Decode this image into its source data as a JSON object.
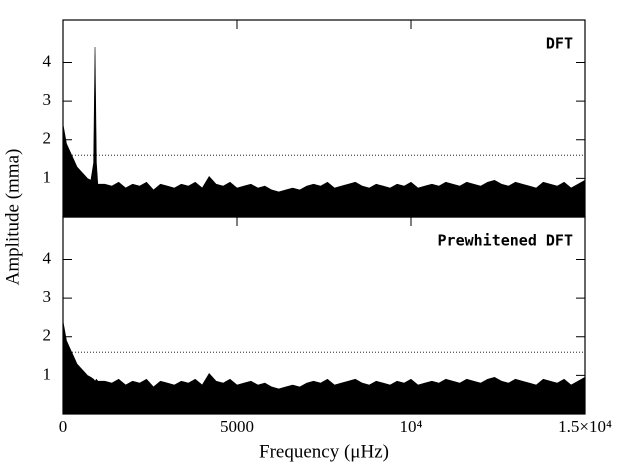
{
  "chart_data": [
    {
      "type": "area",
      "label": "DFT",
      "y_label": "Amplitude (mma)",
      "color": "#000000",
      "threshold": 1.6,
      "x": [
        0,
        100,
        200,
        300,
        400,
        500,
        600,
        700,
        800,
        880,
        920,
        960,
        1000,
        1200,
        1400,
        1600,
        1800,
        2000,
        2200,
        2400,
        2600,
        2800,
        3000,
        3200,
        3400,
        3600,
        3800,
        4000,
        4200,
        4400,
        4600,
        4800,
        5000,
        5200,
        5400,
        5600,
        5800,
        6000,
        6200,
        6400,
        6600,
        6800,
        7000,
        7200,
        7400,
        7600,
        7800,
        8000,
        8200,
        8400,
        8600,
        8800,
        9000,
        9200,
        9400,
        9600,
        9800,
        10000,
        10200,
        10400,
        10600,
        10800,
        11000,
        11200,
        11400,
        11600,
        11800,
        12000,
        12200,
        12400,
        12600,
        12800,
        13000,
        13200,
        13400,
        13600,
        13800,
        14000,
        14200,
        14400,
        14600,
        14800,
        15000
      ],
      "values": [
        2.4,
        1.9,
        1.7,
        1.5,
        1.3,
        1.2,
        1.1,
        1.0,
        0.95,
        1.4,
        4.4,
        1.4,
        0.85,
        0.85,
        0.8,
        0.9,
        0.75,
        0.85,
        0.8,
        0.9,
        0.7,
        0.85,
        0.8,
        0.75,
        0.85,
        0.8,
        0.9,
        0.75,
        1.05,
        0.85,
        0.8,
        0.9,
        0.75,
        0.8,
        0.85,
        0.75,
        0.8,
        0.7,
        0.65,
        0.7,
        0.75,
        0.7,
        0.8,
        0.85,
        0.8,
        0.9,
        0.75,
        0.8,
        0.85,
        0.9,
        0.8,
        0.75,
        0.85,
        0.8,
        0.75,
        0.85,
        0.8,
        0.9,
        0.75,
        0.8,
        0.85,
        0.8,
        0.9,
        0.85,
        0.8,
        0.9,
        0.85,
        0.8,
        0.9,
        0.95,
        0.85,
        0.8,
        0.9,
        0.85,
        0.8,
        0.75,
        0.9,
        0.85,
        0.8,
        0.9,
        0.75,
        0.85,
        0.95
      ],
      "xlim": [
        0,
        15000
      ],
      "ylim": [
        0,
        5.1
      ],
      "yticks": [
        1,
        2,
        3,
        4
      ],
      "xticks": [
        0,
        5000,
        {
          "value": 10000,
          "label": "10⁴"
        },
        {
          "value": 15000,
          "label": "1.5×10⁴"
        }
      ]
    },
    {
      "type": "area",
      "label": "Prewhitened DFT",
      "x_label": "Frequency (μHz)",
      "color": "#000000",
      "threshold": 1.6,
      "x": [
        0,
        100,
        200,
        300,
        400,
        500,
        600,
        700,
        800,
        880,
        920,
        960,
        1000,
        1200,
        1400,
        1600,
        1800,
        2000,
        2200,
        2400,
        2600,
        2800,
        3000,
        3200,
        3400,
        3600,
        3800,
        4000,
        4200,
        4400,
        4600,
        4800,
        5000,
        5200,
        5400,
        5600,
        5800,
        6000,
        6200,
        6400,
        6600,
        6800,
        7000,
        7200,
        7400,
        7600,
        7800,
        8000,
        8200,
        8400,
        8600,
        8800,
        9000,
        9200,
        9400,
        9600,
        9800,
        10000,
        10200,
        10400,
        10600,
        10800,
        11000,
        11200,
        11400,
        11600,
        11800,
        12000,
        12200,
        12400,
        12600,
        12800,
        13000,
        13200,
        13400,
        13600,
        13800,
        14000,
        14200,
        14400,
        14600,
        14800,
        15000
      ],
      "values": [
        2.4,
        1.9,
        1.7,
        1.5,
        1.3,
        1.2,
        1.1,
        1.0,
        0.95,
        0.9,
        0.85,
        0.9,
        0.85,
        0.85,
        0.8,
        0.9,
        0.75,
        0.85,
        0.8,
        0.9,
        0.7,
        0.85,
        0.8,
        0.75,
        0.85,
        0.8,
        0.9,
        0.75,
        1.05,
        0.85,
        0.8,
        0.9,
        0.75,
        0.8,
        0.85,
        0.75,
        0.8,
        0.7,
        0.65,
        0.7,
        0.75,
        0.7,
        0.8,
        0.85,
        0.8,
        0.9,
        0.75,
        0.8,
        0.85,
        0.9,
        0.8,
        0.75,
        0.85,
        0.8,
        0.75,
        0.85,
        0.8,
        0.9,
        0.75,
        0.8,
        0.85,
        0.8,
        0.9,
        0.85,
        0.8,
        0.9,
        0.85,
        0.8,
        0.9,
        0.95,
        0.85,
        0.8,
        0.9,
        0.85,
        0.8,
        0.75,
        0.9,
        0.85,
        0.8,
        0.9,
        0.75,
        0.85,
        0.95
      ],
      "xlim": [
        0,
        15000
      ],
      "ylim": [
        0,
        5.1
      ],
      "yticks": [
        1,
        2,
        3,
        4
      ],
      "xticks": [
        0,
        5000,
        {
          "value": 10000,
          "label": "10⁴"
        },
        {
          "value": 15000,
          "label": "1.5×10⁴"
        }
      ]
    }
  ]
}
